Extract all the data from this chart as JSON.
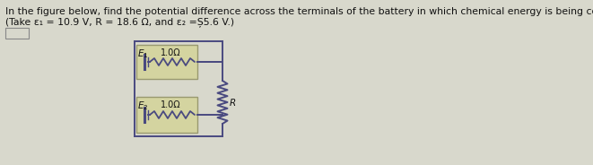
{
  "title_line1": "In the figure below, find the potential difference across the terminals of the battery in which chemical energy is being converted to electrical potential energy.",
  "title_line2": "(Take ε₁ = 10.9 V, R = 18.6 Ω, and ε₂ =Ș5.6 V.)",
  "bg_color": "#d8d8cc",
  "circuit_box_color": "#d4d4a0",
  "circuit_box_edge": "#999970",
  "wire_color": "#4a4a80",
  "resistor_color": "#4a4a80",
  "text_color": "#111111",
  "E1_label": "$\\mathit{E}_1$",
  "E2_label": "$\\mathit{E}_2$",
  "r1_label": "1.0Ω",
  "r2_label": "1.0Ω",
  "R_label": "$R$",
  "font_size_title": 7.8,
  "font_size_circuit": 7.0
}
